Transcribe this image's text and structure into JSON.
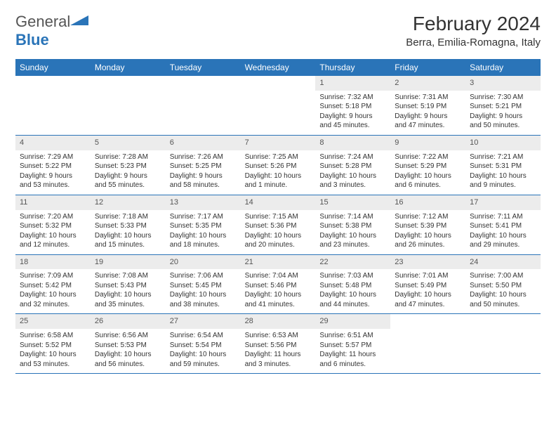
{
  "logo": {
    "text1": "General",
    "text2": "Blue"
  },
  "title": "February 2024",
  "location": "Berra, Emilia-Romagna, Italy",
  "dayNames": [
    "Sunday",
    "Monday",
    "Tuesday",
    "Wednesday",
    "Thursday",
    "Friday",
    "Saturday"
  ],
  "colors": {
    "header_bg": "#2a74b8",
    "daynum_bg": "#ececec",
    "text": "#333333",
    "border": "#2a74b8"
  },
  "weeks": [
    [
      {
        "empty": true
      },
      {
        "empty": true
      },
      {
        "empty": true
      },
      {
        "empty": true
      },
      {
        "day": "1",
        "sunrise": "Sunrise: 7:32 AM",
        "sunset": "Sunset: 5:18 PM",
        "daylight1": "Daylight: 9 hours",
        "daylight2": "and 45 minutes."
      },
      {
        "day": "2",
        "sunrise": "Sunrise: 7:31 AM",
        "sunset": "Sunset: 5:19 PM",
        "daylight1": "Daylight: 9 hours",
        "daylight2": "and 47 minutes."
      },
      {
        "day": "3",
        "sunrise": "Sunrise: 7:30 AM",
        "sunset": "Sunset: 5:21 PM",
        "daylight1": "Daylight: 9 hours",
        "daylight2": "and 50 minutes."
      }
    ],
    [
      {
        "day": "4",
        "sunrise": "Sunrise: 7:29 AM",
        "sunset": "Sunset: 5:22 PM",
        "daylight1": "Daylight: 9 hours",
        "daylight2": "and 53 minutes."
      },
      {
        "day": "5",
        "sunrise": "Sunrise: 7:28 AM",
        "sunset": "Sunset: 5:23 PM",
        "daylight1": "Daylight: 9 hours",
        "daylight2": "and 55 minutes."
      },
      {
        "day": "6",
        "sunrise": "Sunrise: 7:26 AM",
        "sunset": "Sunset: 5:25 PM",
        "daylight1": "Daylight: 9 hours",
        "daylight2": "and 58 minutes."
      },
      {
        "day": "7",
        "sunrise": "Sunrise: 7:25 AM",
        "sunset": "Sunset: 5:26 PM",
        "daylight1": "Daylight: 10 hours",
        "daylight2": "and 1 minute."
      },
      {
        "day": "8",
        "sunrise": "Sunrise: 7:24 AM",
        "sunset": "Sunset: 5:28 PM",
        "daylight1": "Daylight: 10 hours",
        "daylight2": "and 3 minutes."
      },
      {
        "day": "9",
        "sunrise": "Sunrise: 7:22 AM",
        "sunset": "Sunset: 5:29 PM",
        "daylight1": "Daylight: 10 hours",
        "daylight2": "and 6 minutes."
      },
      {
        "day": "10",
        "sunrise": "Sunrise: 7:21 AM",
        "sunset": "Sunset: 5:31 PM",
        "daylight1": "Daylight: 10 hours",
        "daylight2": "and 9 minutes."
      }
    ],
    [
      {
        "day": "11",
        "sunrise": "Sunrise: 7:20 AM",
        "sunset": "Sunset: 5:32 PM",
        "daylight1": "Daylight: 10 hours",
        "daylight2": "and 12 minutes."
      },
      {
        "day": "12",
        "sunrise": "Sunrise: 7:18 AM",
        "sunset": "Sunset: 5:33 PM",
        "daylight1": "Daylight: 10 hours",
        "daylight2": "and 15 minutes."
      },
      {
        "day": "13",
        "sunrise": "Sunrise: 7:17 AM",
        "sunset": "Sunset: 5:35 PM",
        "daylight1": "Daylight: 10 hours",
        "daylight2": "and 18 minutes."
      },
      {
        "day": "14",
        "sunrise": "Sunrise: 7:15 AM",
        "sunset": "Sunset: 5:36 PM",
        "daylight1": "Daylight: 10 hours",
        "daylight2": "and 20 minutes."
      },
      {
        "day": "15",
        "sunrise": "Sunrise: 7:14 AM",
        "sunset": "Sunset: 5:38 PM",
        "daylight1": "Daylight: 10 hours",
        "daylight2": "and 23 minutes."
      },
      {
        "day": "16",
        "sunrise": "Sunrise: 7:12 AM",
        "sunset": "Sunset: 5:39 PM",
        "daylight1": "Daylight: 10 hours",
        "daylight2": "and 26 minutes."
      },
      {
        "day": "17",
        "sunrise": "Sunrise: 7:11 AM",
        "sunset": "Sunset: 5:41 PM",
        "daylight1": "Daylight: 10 hours",
        "daylight2": "and 29 minutes."
      }
    ],
    [
      {
        "day": "18",
        "sunrise": "Sunrise: 7:09 AM",
        "sunset": "Sunset: 5:42 PM",
        "daylight1": "Daylight: 10 hours",
        "daylight2": "and 32 minutes."
      },
      {
        "day": "19",
        "sunrise": "Sunrise: 7:08 AM",
        "sunset": "Sunset: 5:43 PM",
        "daylight1": "Daylight: 10 hours",
        "daylight2": "and 35 minutes."
      },
      {
        "day": "20",
        "sunrise": "Sunrise: 7:06 AM",
        "sunset": "Sunset: 5:45 PM",
        "daylight1": "Daylight: 10 hours",
        "daylight2": "and 38 minutes."
      },
      {
        "day": "21",
        "sunrise": "Sunrise: 7:04 AM",
        "sunset": "Sunset: 5:46 PM",
        "daylight1": "Daylight: 10 hours",
        "daylight2": "and 41 minutes."
      },
      {
        "day": "22",
        "sunrise": "Sunrise: 7:03 AM",
        "sunset": "Sunset: 5:48 PM",
        "daylight1": "Daylight: 10 hours",
        "daylight2": "and 44 minutes."
      },
      {
        "day": "23",
        "sunrise": "Sunrise: 7:01 AM",
        "sunset": "Sunset: 5:49 PM",
        "daylight1": "Daylight: 10 hours",
        "daylight2": "and 47 minutes."
      },
      {
        "day": "24",
        "sunrise": "Sunrise: 7:00 AM",
        "sunset": "Sunset: 5:50 PM",
        "daylight1": "Daylight: 10 hours",
        "daylight2": "and 50 minutes."
      }
    ],
    [
      {
        "day": "25",
        "sunrise": "Sunrise: 6:58 AM",
        "sunset": "Sunset: 5:52 PM",
        "daylight1": "Daylight: 10 hours",
        "daylight2": "and 53 minutes."
      },
      {
        "day": "26",
        "sunrise": "Sunrise: 6:56 AM",
        "sunset": "Sunset: 5:53 PM",
        "daylight1": "Daylight: 10 hours",
        "daylight2": "and 56 minutes."
      },
      {
        "day": "27",
        "sunrise": "Sunrise: 6:54 AM",
        "sunset": "Sunset: 5:54 PM",
        "daylight1": "Daylight: 10 hours",
        "daylight2": "and 59 minutes."
      },
      {
        "day": "28",
        "sunrise": "Sunrise: 6:53 AM",
        "sunset": "Sunset: 5:56 PM",
        "daylight1": "Daylight: 11 hours",
        "daylight2": "and 3 minutes."
      },
      {
        "day": "29",
        "sunrise": "Sunrise: 6:51 AM",
        "sunset": "Sunset: 5:57 PM",
        "daylight1": "Daylight: 11 hours",
        "daylight2": "and 6 minutes."
      },
      {
        "empty": true
      },
      {
        "empty": true
      }
    ]
  ]
}
